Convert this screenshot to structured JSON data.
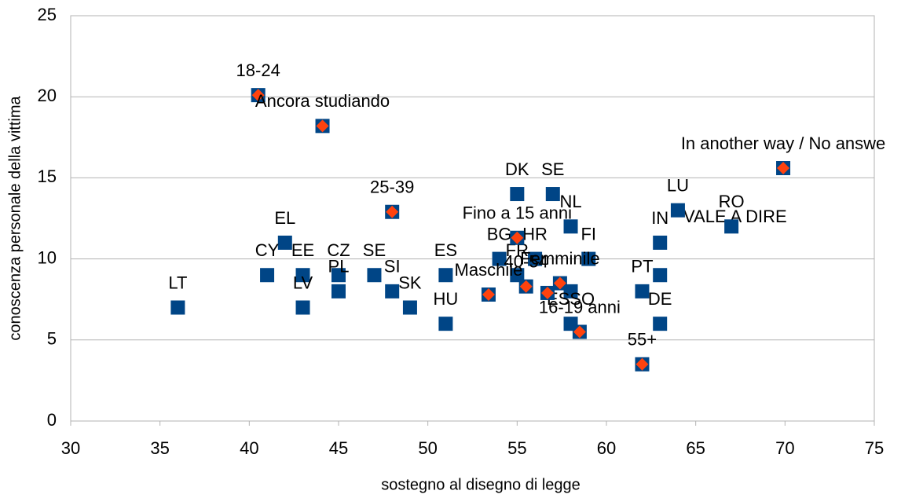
{
  "chart_data": {
    "type": "scatter",
    "xlabel": "sostegno al disegno di legge",
    "ylabel": "conoscenza personale della vittima",
    "xlim": [
      30,
      75
    ],
    "xticks": [
      30,
      35,
      40,
      45,
      50,
      55,
      60,
      65,
      70,
      75
    ],
    "ylim": [
      0,
      25
    ],
    "yticks": [
      0,
      5,
      10,
      15,
      20,
      25
    ],
    "grid": true,
    "series": [
      {
        "color": "#004586",
        "marker": "square",
        "x": [
          36,
          42,
          41,
          43,
          43,
          45,
          45,
          47,
          48,
          49,
          51,
          51,
          55,
          57,
          54,
          56,
          55,
          58,
          59,
          58,
          58,
          64,
          67,
          63,
          63,
          62,
          63
        ],
        "values": [
          7,
          11,
          9,
          9,
          7,
          9,
          8,
          9,
          8,
          7,
          9,
          6,
          14,
          14,
          10,
          10,
          9,
          12,
          10,
          8,
          6,
          13,
          12,
          11,
          9,
          8,
          6
        ],
        "labels": [
          "LT",
          "EL",
          "CY",
          "EE",
          "LV",
          "CZ",
          "PL",
          "SE",
          "SI",
          "SK",
          "ES",
          "HU",
          "DK",
          "SE",
          "BG",
          "HR",
          "FR",
          "NL",
          "FI",
          null,
          "ESSO",
          "LU",
          "RO",
          "IN",
          null,
          "PT",
          "DE"
        ]
      },
      {
        "color": "#ff420e",
        "marker": "diamond",
        "x": [
          40.5,
          44.1,
          48,
          69.9,
          55,
          53.4,
          55.5,
          57.4,
          56.7,
          58.5,
          62
        ],
        "values": [
          20.1,
          18.2,
          12.9,
          15.6,
          11.3,
          7.8,
          8.3,
          8.5,
          7.9,
          5.5,
          3.5
        ],
        "labels": [
          "18-24",
          "Ancora studiando",
          "25-39",
          "In another way / No answe",
          "Fino a 15 anni",
          "Maschile",
          "40-54",
          "Femminile",
          null,
          "16-19 anni",
          "55+"
        ]
      }
    ],
    "annotations": [
      "VALE A DIRE"
    ]
  }
}
